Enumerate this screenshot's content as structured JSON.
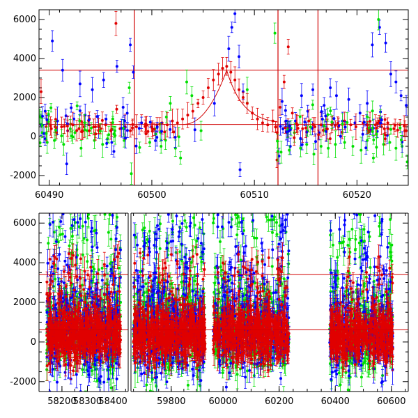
{
  "chart_data": [
    {
      "type": "scatter",
      "panel": "top",
      "xlim": [
        60489,
        60525
      ],
      "ylim": [
        -2500,
        6500
      ],
      "xticks": [
        60490,
        60500,
        60510,
        60520
      ],
      "yticks": [
        -2000,
        0,
        2000,
        4000,
        6000
      ],
      "hlines": [
        3400,
        620
      ],
      "vlines": [
        60498.3,
        60512.3,
        60516.2
      ],
      "flare_curve": {
        "peak_x": 60507.3,
        "peak_y": 3400,
        "rise_start_x": 60503.0,
        "decay_to_x": 60512.3,
        "base_y": 620
      },
      "series": [
        {
          "name": "",
          "color": "#0000ff",
          "points": [
            [
              60489.2,
              600
            ],
            [
              60489.6,
              1300
            ],
            [
              60490.3,
              4900
            ],
            [
              60490.8,
              800
            ],
            [
              60491.3,
              3400
            ],
            [
              60491.7,
              -1400
            ],
            [
              60492.4,
              900
            ],
            [
              60493.0,
              2700
            ],
            [
              60493.5,
              1100
            ],
            [
              60494.2,
              2400
            ],
            [
              60494.8,
              500
            ],
            [
              60495.3,
              2900
            ],
            [
              60496.1,
              -300
            ],
            [
              60496.6,
              3600
            ],
            [
              60497.2,
              1500
            ],
            [
              60497.9,
              4700
            ],
            [
              60498.2,
              3300
            ],
            [
              60504.2,
              350
            ],
            [
              60506.1,
              1700
            ],
            [
              60507.5,
              4500
            ],
            [
              60507.8,
              5600
            ],
            [
              60508.1,
              6300
            ],
            [
              60508.5,
              4100
            ],
            [
              60508.9,
              2300
            ],
            [
              60508.6,
              -1700
            ],
            [
              60512.4,
              -1000
            ],
            [
              60512.7,
              1800
            ],
            [
              60513.2,
              200
            ],
            [
              60513.5,
              -500
            ],
            [
              60514.0,
              800
            ],
            [
              60514.6,
              2100
            ],
            [
              60515.2,
              1300
            ],
            [
              60515.7,
              2400
            ],
            [
              60516.3,
              200
            ],
            [
              60516.8,
              1600
            ],
            [
              60517.4,
              2500
            ],
            [
              60518.0,
              2100
            ],
            [
              60518.6,
              800
            ],
            [
              60519.2,
              1900
            ],
            [
              60519.8,
              700
            ],
            [
              60520.3,
              1200
            ],
            [
              60521.0,
              1700
            ],
            [
              60521.5,
              4700
            ],
            [
              60522.2,
              5600
            ],
            [
              60522.8,
              4800
            ],
            [
              60523.3,
              3200
            ],
            [
              60523.8,
              2800
            ],
            [
              60524.3,
              2100
            ],
            [
              60524.8,
              1600
            ]
          ]
        },
        {
          "name": "",
          "color": "#00e000",
          "points": [
            [
              60489.3,
              200
            ],
            [
              60489.8,
              -300
            ],
            [
              60490.5,
              -200
            ],
            [
              60491.4,
              -400
            ],
            [
              60492.5,
              200
            ],
            [
              60493.1,
              -600
            ],
            [
              60493.7,
              300
            ],
            [
              60494.4,
              -200
            ],
            [
              60495.2,
              -400
            ],
            [
              60495.8,
              100
            ],
            [
              60496.4,
              300
            ],
            [
              60497.3,
              -200
            ],
            [
              60497.8,
              2500
            ],
            [
              60498.0,
              -1900
            ],
            [
              60499.8,
              -300
            ],
            [
              60500.9,
              -500
            ],
            [
              60501.8,
              1700
            ],
            [
              60502.3,
              -600
            ],
            [
              60502.8,
              -1100
            ],
            [
              60503.4,
              2800
            ],
            [
              60503.9,
              2100
            ],
            [
              60504.8,
              300
            ],
            [
              60509.3,
              2400
            ],
            [
              60512.0,
              5300
            ],
            [
              60512.6,
              -800
            ],
            [
              60513.4,
              -700
            ],
            [
              60513.9,
              200
            ],
            [
              60514.5,
              -600
            ],
            [
              60515.1,
              -400
            ],
            [
              60515.8,
              -900
            ],
            [
              60516.5,
              -500
            ],
            [
              60517.2,
              -600
            ],
            [
              60517.9,
              -400
            ],
            [
              60518.8,
              -300
            ],
            [
              60519.6,
              -500
            ],
            [
              60520.4,
              -700
            ],
            [
              60521.0,
              -200
            ],
            [
              60521.6,
              -1100
            ],
            [
              60522.1,
              6000
            ],
            [
              60522.6,
              -400
            ],
            [
              60523.2,
              -300
            ],
            [
              60523.8,
              -600
            ],
            [
              60524.4,
              -500
            ],
            [
              60524.9,
              -1300
            ]
          ]
        },
        {
          "name": "",
          "color": "#e00000",
          "points": [
            [
              60489.2,
              2300
            ],
            [
              60489.7,
              500
            ],
            [
              60490.2,
              400
            ],
            [
              60490.7,
              200
            ],
            [
              60491.2,
              500
            ],
            [
              60491.8,
              300
            ],
            [
              60492.3,
              600
            ],
            [
              60492.9,
              400
            ],
            [
              60493.4,
              500
            ],
            [
              60493.9,
              300
            ],
            [
              60494.5,
              500
            ],
            [
              60495.0,
              400
            ],
            [
              60495.5,
              600
            ],
            [
              60496.0,
              300
            ],
            [
              60496.5,
              5800
            ],
            [
              60496.9,
              400
            ],
            [
              60497.4,
              500
            ],
            [
              60497.9,
              300
            ],
            [
              60498.5,
              500
            ],
            [
              60499.0,
              700
            ],
            [
              60499.5,
              600
            ],
            [
              60500.0,
              500
            ],
            [
              60500.5,
              600
            ],
            [
              60501.0,
              700
            ],
            [
              60501.5,
              600
            ],
            [
              60502.0,
              800
            ],
            [
              60502.5,
              700
            ],
            [
              60503.0,
              900
            ],
            [
              60503.5,
              1100
            ],
            [
              60504.0,
              1300
            ],
            [
              60504.5,
              1700
            ],
            [
              60505.0,
              2000
            ],
            [
              60505.5,
              2500
            ],
            [
              60506.0,
              2900
            ],
            [
              60506.5,
              3200
            ],
            [
              60506.9,
              3500
            ],
            [
              60507.3,
              3600
            ],
            [
              60507.7,
              3300
            ],
            [
              60508.1,
              2900
            ],
            [
              60508.5,
              2400
            ],
            [
              60508.9,
              2000
            ],
            [
              60509.3,
              1700
            ],
            [
              60509.8,
              1200
            ],
            [
              60510.3,
              900
            ],
            [
              60510.8,
              700
            ],
            [
              60511.3,
              600
            ],
            [
              60511.8,
              800
            ],
            [
              60512.2,
              -1200
            ],
            [
              60512.5,
              1500
            ],
            [
              60512.9,
              2800
            ],
            [
              60513.3,
              4600
            ],
            [
              60513.7,
              1200
            ],
            [
              60514.2,
              600
            ],
            [
              60514.7,
              400
            ],
            [
              60515.3,
              800
            ],
            [
              60515.9,
              500
            ],
            [
              60516.5,
              600
            ],
            [
              60517.0,
              400
            ],
            [
              60517.6,
              700
            ],
            [
              60518.2,
              500
            ],
            [
              60518.8,
              800
            ],
            [
              60519.4,
              600
            ],
            [
              60519.9,
              500
            ],
            [
              60520.6,
              700
            ],
            [
              60521.2,
              400
            ],
            [
              60521.8,
              600
            ],
            [
              60522.4,
              500
            ],
            [
              60523.0,
              700
            ],
            [
              60523.6,
              400
            ],
            [
              60524.2,
              600
            ],
            [
              60524.8,
              300
            ]
          ]
        }
      ]
    },
    {
      "type": "scatter",
      "panel": "bottom",
      "segments": [
        {
          "xlim": [
            58110,
            58460
          ],
          "xticks": [
            58200,
            58300,
            58400
          ]
        },
        {
          "xlim": [
            59640,
            59950
          ],
          "xticks": [
            59800
          ]
        },
        {
          "xlim": [
            59950,
            60660
          ],
          "xticks": [
            60000,
            60200,
            60400,
            60600
          ]
        }
      ],
      "ylim": [
        -2500,
        6500
      ],
      "yticks": [
        -2000,
        0,
        2000,
        4000,
        6000
      ],
      "hlines": [
        3400,
        620
      ],
      "clusters": [
        {
          "seg": 0,
          "x_from": 58140,
          "x_to": 58430
        },
        {
          "seg": 1,
          "x_from": 59650,
          "x_to": 59935
        },
        {
          "seg": 2,
          "x_from": 59965,
          "x_to": 60235
        },
        {
          "seg": 2,
          "x_from": 60380,
          "x_to": 60605
        }
      ],
      "series_colors": {
        "blue": "#0000ff",
        "green": "#00e000",
        "red": "#e00000"
      }
    }
  ]
}
